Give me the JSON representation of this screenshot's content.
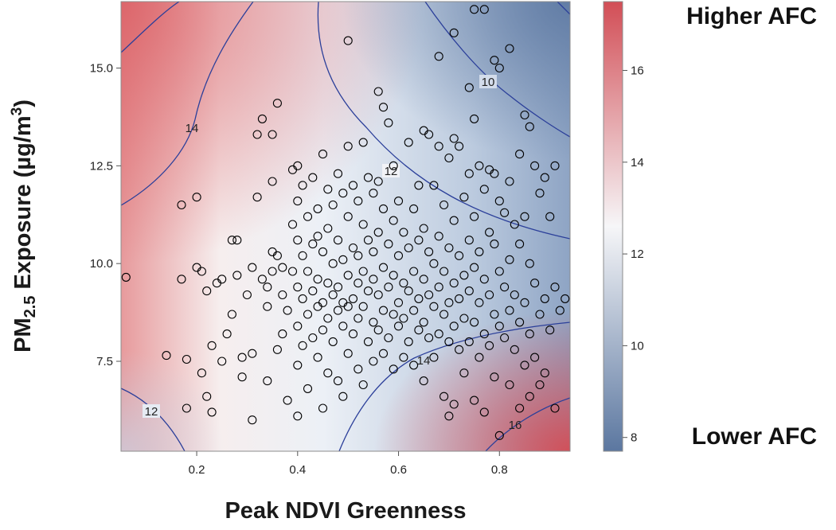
{
  "chart_data": {
    "type": "scatter",
    "xlabel": "Peak NDVI Greenness",
    "ylabel_main": "PM",
    "ylabel_sub": "2.5",
    "ylabel_rest": " Exposure (µg/m",
    "ylabel_sup": "3",
    "ylabel_close": ")",
    "xlim": [
      0.05,
      0.94
    ],
    "ylim": [
      5.2,
      16.7
    ],
    "x_ticks": [
      "0.2",
      "0.4",
      "0.6",
      "0.8"
    ],
    "y_ticks": [
      "7.5",
      "10.0",
      "12.5",
      "15.0"
    ],
    "colorbar": {
      "range": [
        7.7,
        17.5
      ],
      "ticks": [
        "8",
        "10",
        "12",
        "14",
        "16"
      ],
      "high_label": "Higher AFC",
      "low_label": "Lower AFC",
      "colors": {
        "high": "#d24e56",
        "mid": "#f6f6f8",
        "low": "#5b77a0"
      }
    },
    "contour_labels": [
      "10",
      "12",
      "12",
      "12",
      "14",
      "14",
      "16"
    ],
    "contour_color": "#2b3f9a",
    "point_style": "open-circle",
    "points": [
      [
        0.06,
        9.65
      ],
      [
        0.14,
        7.65
      ],
      [
        0.17,
        11.5
      ],
      [
        0.17,
        9.6
      ],
      [
        0.18,
        7.55
      ],
      [
        0.18,
        6.3
      ],
      [
        0.2,
        11.7
      ],
      [
        0.2,
        9.9
      ],
      [
        0.21,
        9.8
      ],
      [
        0.21,
        7.2
      ],
      [
        0.22,
        9.3
      ],
      [
        0.22,
        6.6
      ],
      [
        0.23,
        7.9
      ],
      [
        0.23,
        6.2
      ],
      [
        0.24,
        9.5
      ],
      [
        0.25,
        9.6
      ],
      [
        0.25,
        7.5
      ],
      [
        0.26,
        8.2
      ],
      [
        0.27,
        10.6
      ],
      [
        0.27,
        8.7
      ],
      [
        0.28,
        10.6
      ],
      [
        0.28,
        9.7
      ],
      [
        0.29,
        7.6
      ],
      [
        0.29,
        7.1
      ],
      [
        0.3,
        9.2
      ],
      [
        0.31,
        9.9
      ],
      [
        0.31,
        7.7
      ],
      [
        0.31,
        6.0
      ],
      [
        0.32,
        11.7
      ],
      [
        0.32,
        13.3
      ],
      [
        0.33,
        13.7
      ],
      [
        0.33,
        9.6
      ],
      [
        0.34,
        9.4
      ],
      [
        0.34,
        8.9
      ],
      [
        0.34,
        7.0
      ],
      [
        0.35,
        12.1
      ],
      [
        0.35,
        13.3
      ],
      [
        0.35,
        10.3
      ],
      [
        0.35,
        9.8
      ],
      [
        0.36,
        14.1
      ],
      [
        0.36,
        10.2
      ],
      [
        0.36,
        7.8
      ],
      [
        0.37,
        9.9
      ],
      [
        0.37,
        9.2
      ],
      [
        0.37,
        8.2
      ],
      [
        0.38,
        8.8
      ],
      [
        0.38,
        6.5
      ],
      [
        0.39,
        12.4
      ],
      [
        0.39,
        11.0
      ],
      [
        0.39,
        9.8
      ],
      [
        0.4,
        12.5
      ],
      [
        0.4,
        11.6
      ],
      [
        0.4,
        10.6
      ],
      [
        0.4,
        9.4
      ],
      [
        0.4,
        8.4
      ],
      [
        0.4,
        7.4
      ],
      [
        0.4,
        6.1
      ],
      [
        0.41,
        12.0
      ],
      [
        0.41,
        10.2
      ],
      [
        0.41,
        9.1
      ],
      [
        0.41,
        7.9
      ],
      [
        0.42,
        11.2
      ],
      [
        0.42,
        9.8
      ],
      [
        0.42,
        8.7
      ],
      [
        0.42,
        6.8
      ],
      [
        0.43,
        12.2
      ],
      [
        0.43,
        10.5
      ],
      [
        0.43,
        9.3
      ],
      [
        0.43,
        8.1
      ],
      [
        0.44,
        11.4
      ],
      [
        0.44,
        10.7
      ],
      [
        0.44,
        9.6
      ],
      [
        0.44,
        8.9
      ],
      [
        0.44,
        7.6
      ],
      [
        0.45,
        12.8
      ],
      [
        0.45,
        10.3
      ],
      [
        0.45,
        9.0
      ],
      [
        0.45,
        8.3
      ],
      [
        0.45,
        6.3
      ],
      [
        0.46,
        11.9
      ],
      [
        0.46,
        10.9
      ],
      [
        0.46,
        9.5
      ],
      [
        0.46,
        8.6
      ],
      [
        0.46,
        7.2
      ],
      [
        0.47,
        11.5
      ],
      [
        0.47,
        10.0
      ],
      [
        0.47,
        9.2
      ],
      [
        0.47,
        8.0
      ],
      [
        0.48,
        12.3
      ],
      [
        0.48,
        10.6
      ],
      [
        0.48,
        9.4
      ],
      [
        0.48,
        8.8
      ],
      [
        0.48,
        7.0
      ],
      [
        0.49,
        11.8
      ],
      [
        0.49,
        10.1
      ],
      [
        0.49,
        9.0
      ],
      [
        0.49,
        8.4
      ],
      [
        0.49,
        6.6
      ],
      [
        0.5,
        15.7
      ],
      [
        0.5,
        13.0
      ],
      [
        0.5,
        11.2
      ],
      [
        0.5,
        9.7
      ],
      [
        0.5,
        8.9
      ],
      [
        0.5,
        7.7
      ],
      [
        0.51,
        12.0
      ],
      [
        0.51,
        10.4
      ],
      [
        0.51,
        9.1
      ],
      [
        0.51,
        8.2
      ],
      [
        0.52,
        11.6
      ],
      [
        0.52,
        10.2
      ],
      [
        0.52,
        9.5
      ],
      [
        0.52,
        8.6
      ],
      [
        0.52,
        7.3
      ],
      [
        0.53,
        13.1
      ],
      [
        0.53,
        11.0
      ],
      [
        0.53,
        9.8
      ],
      [
        0.53,
        8.9
      ],
      [
        0.53,
        6.9
      ],
      [
        0.54,
        12.2
      ],
      [
        0.54,
        10.6
      ],
      [
        0.54,
        9.3
      ],
      [
        0.54,
        8.0
      ],
      [
        0.55,
        11.8
      ],
      [
        0.55,
        10.3
      ],
      [
        0.55,
        9.6
      ],
      [
        0.55,
        8.5
      ],
      [
        0.55,
        7.5
      ],
      [
        0.56,
        14.4
      ],
      [
        0.56,
        12.1
      ],
      [
        0.56,
        10.8
      ],
      [
        0.56,
        9.2
      ],
      [
        0.56,
        8.3
      ],
      [
        0.57,
        14.0
      ],
      [
        0.57,
        11.4
      ],
      [
        0.57,
        9.9
      ],
      [
        0.57,
        8.8
      ],
      [
        0.57,
        7.7
      ],
      [
        0.58,
        13.6
      ],
      [
        0.58,
        10.5
      ],
      [
        0.58,
        9.4
      ],
      [
        0.58,
        8.1
      ],
      [
        0.59,
        12.5
      ],
      [
        0.59,
        11.1
      ],
      [
        0.59,
        9.7
      ],
      [
        0.59,
        8.7
      ],
      [
        0.59,
        7.3
      ],
      [
        0.6,
        11.6
      ],
      [
        0.6,
        10.2
      ],
      [
        0.6,
        9.0
      ],
      [
        0.6,
        8.4
      ],
      [
        0.61,
        10.8
      ],
      [
        0.61,
        9.5
      ],
      [
        0.61,
        8.6
      ],
      [
        0.61,
        7.6
      ],
      [
        0.62,
        13.1
      ],
      [
        0.62,
        10.4
      ],
      [
        0.62,
        9.3
      ],
      [
        0.62,
        8.0
      ],
      [
        0.63,
        11.4
      ],
      [
        0.63,
        9.8
      ],
      [
        0.63,
        8.8
      ],
      [
        0.63,
        7.4
      ],
      [
        0.64,
        12.0
      ],
      [
        0.64,
        10.6
      ],
      [
        0.64,
        9.1
      ],
      [
        0.64,
        8.3
      ],
      [
        0.65,
        13.4
      ],
      [
        0.65,
        10.9
      ],
      [
        0.65,
        9.6
      ],
      [
        0.65,
        8.5
      ],
      [
        0.65,
        7.0
      ],
      [
        0.66,
        13.3
      ],
      [
        0.66,
        10.3
      ],
      [
        0.66,
        9.2
      ],
      [
        0.66,
        8.1
      ],
      [
        0.67,
        12.0
      ],
      [
        0.67,
        10.0
      ],
      [
        0.67,
        8.9
      ],
      [
        0.67,
        7.6
      ],
      [
        0.68,
        15.3
      ],
      [
        0.68,
        13.0
      ],
      [
        0.68,
        10.7
      ],
      [
        0.68,
        9.4
      ],
      [
        0.68,
        8.2
      ],
      [
        0.69,
        11.5
      ],
      [
        0.69,
        9.8
      ],
      [
        0.69,
        8.7
      ],
      [
        0.69,
        6.6
      ],
      [
        0.7,
        12.7
      ],
      [
        0.7,
        10.4
      ],
      [
        0.7,
        9.0
      ],
      [
        0.7,
        8.0
      ],
      [
        0.7,
        6.1
      ],
      [
        0.71,
        15.9
      ],
      [
        0.71,
        13.2
      ],
      [
        0.71,
        11.1
      ],
      [
        0.71,
        9.5
      ],
      [
        0.71,
        8.4
      ],
      [
        0.71,
        6.4
      ],
      [
        0.72,
        13.0
      ],
      [
        0.72,
        10.2
      ],
      [
        0.72,
        9.1
      ],
      [
        0.72,
        7.8
      ],
      [
        0.73,
        11.7
      ],
      [
        0.73,
        9.7
      ],
      [
        0.73,
        8.6
      ],
      [
        0.73,
        7.2
      ],
      [
        0.74,
        14.5
      ],
      [
        0.74,
        12.3
      ],
      [
        0.74,
        10.6
      ],
      [
        0.74,
        9.3
      ],
      [
        0.74,
        8.0
      ],
      [
        0.75,
        16.5
      ],
      [
        0.75,
        13.7
      ],
      [
        0.75,
        11.2
      ],
      [
        0.75,
        9.9
      ],
      [
        0.75,
        8.5
      ],
      [
        0.75,
        6.5
      ],
      [
        0.76,
        12.5
      ],
      [
        0.76,
        10.3
      ],
      [
        0.76,
        9.0
      ],
      [
        0.76,
        7.6
      ],
      [
        0.77,
        16.5
      ],
      [
        0.77,
        11.9
      ],
      [
        0.77,
        9.6
      ],
      [
        0.77,
        8.2
      ],
      [
        0.77,
        6.2
      ],
      [
        0.78,
        12.4
      ],
      [
        0.78,
        10.8
      ],
      [
        0.78,
        9.2
      ],
      [
        0.78,
        7.9
      ],
      [
        0.79,
        15.2
      ],
      [
        0.79,
        12.3
      ],
      [
        0.79,
        10.5
      ],
      [
        0.79,
        8.7
      ],
      [
        0.79,
        7.1
      ],
      [
        0.8,
        15.0
      ],
      [
        0.8,
        11.6
      ],
      [
        0.8,
        9.8
      ],
      [
        0.8,
        8.4
      ],
      [
        0.8,
        5.6
      ],
      [
        0.81,
        11.3
      ],
      [
        0.81,
        9.4
      ],
      [
        0.81,
        8.1
      ],
      [
        0.82,
        15.5
      ],
      [
        0.82,
        12.1
      ],
      [
        0.82,
        10.1
      ],
      [
        0.82,
        8.8
      ],
      [
        0.82,
        6.9
      ],
      [
        0.83,
        11.0
      ],
      [
        0.83,
        9.2
      ],
      [
        0.83,
        7.8
      ],
      [
        0.84,
        12.8
      ],
      [
        0.84,
        10.5
      ],
      [
        0.84,
        8.5
      ],
      [
        0.84,
        6.3
      ],
      [
        0.85,
        13.8
      ],
      [
        0.85,
        11.2
      ],
      [
        0.85,
        9.0
      ],
      [
        0.85,
        7.4
      ],
      [
        0.86,
        13.5
      ],
      [
        0.86,
        10.0
      ],
      [
        0.86,
        8.2
      ],
      [
        0.86,
        6.6
      ],
      [
        0.87,
        12.5
      ],
      [
        0.87,
        9.5
      ],
      [
        0.87,
        7.6
      ],
      [
        0.88,
        11.8
      ],
      [
        0.88,
        8.7
      ],
      [
        0.88,
        6.9
      ],
      [
        0.89,
        12.2
      ],
      [
        0.89,
        9.1
      ],
      [
        0.89,
        7.2
      ],
      [
        0.9,
        11.2
      ],
      [
        0.9,
        8.3
      ],
      [
        0.91,
        12.5
      ],
      [
        0.91,
        9.4
      ],
      [
        0.91,
        6.3
      ],
      [
        0.92,
        8.8
      ],
      [
        0.93,
        9.1
      ]
    ]
  }
}
